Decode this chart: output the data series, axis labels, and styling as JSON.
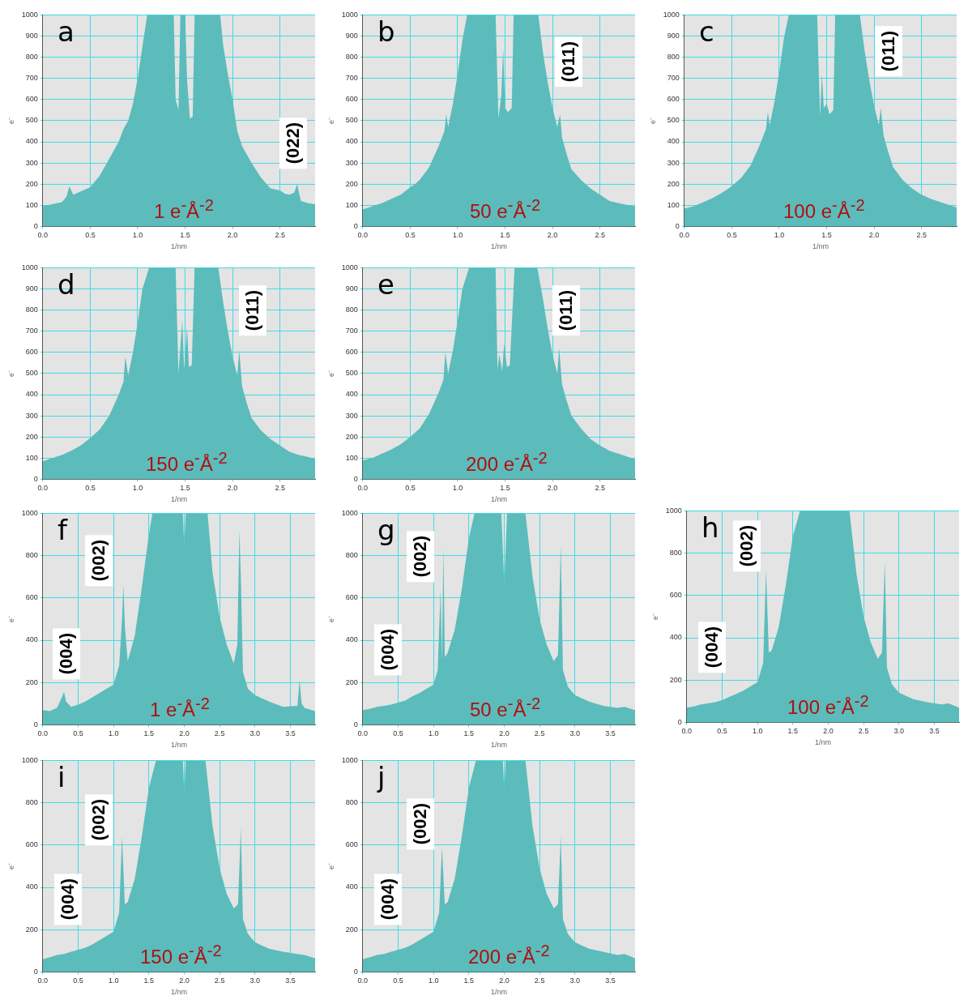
{
  "chart_data": [
    {
      "type": "area",
      "title": "a",
      "xlabel": "1/nm",
      "ylabel": "e⁻",
      "annotations": [
        "(022)",
        "1 e$^{-}$Å$^{-2}$"
      ],
      "xlim": [
        0,
        2.87
      ],
      "ylim": [
        0,
        1000
      ],
      "xticks": [
        {
          "value": 0,
          "label": "0.0"
        },
        {
          "value": 0.5,
          "label": "0.5"
        },
        {
          "value": 1,
          "label": "1.0"
        },
        {
          "value": 1.5,
          "label": "1.5"
        },
        {
          "value": 2,
          "label": "2.0"
        },
        {
          "value": 2.5,
          "label": "2.5"
        }
      ],
      "yticks": [
        0,
        100,
        200,
        300,
        400,
        500,
        600,
        700,
        800,
        900,
        1000
      ],
      "grid": true,
      "series": [
        {
          "color": "#5bbcbb",
          "x": [
            0,
            0.1,
            0.2,
            0.25,
            0.28,
            0.32,
            0.4,
            0.5,
            0.6,
            0.7,
            0.8,
            0.85,
            0.9,
            0.95,
            1.0,
            1.05,
            1.1,
            1.38,
            1.4,
            1.43,
            1.45,
            1.47,
            1.5,
            1.52,
            1.55,
            1.58,
            1.6,
            1.87,
            1.9,
            1.95,
            2.0,
            2.05,
            2.1,
            2.2,
            2.3,
            2.4,
            2.5,
            2.55,
            2.6,
            2.65,
            2.68,
            2.72,
            2.8,
            2.87
          ],
          "values": [
            95,
            105,
            115,
            140,
            190,
            150,
            165,
            185,
            240,
            320,
            400,
            460,
            500,
            580,
            700,
            850,
            1000,
            1000,
            600,
            550,
            1000,
            1000,
            1000,
            700,
            510,
            520,
            1000,
            1000,
            860,
            720,
            600,
            450,
            380,
            300,
            230,
            180,
            170,
            155,
            150,
            160,
            200,
            120,
            110,
            105
          ]
        }
      ]
    },
    {
      "type": "area",
      "title": "b",
      "xlabel": "1/nm",
      "ylabel": "e⁻",
      "annotations": [
        "(011)",
        "50 e$^{-}$Å$^{-2}$"
      ],
      "xlim": [
        0,
        2.87
      ],
      "ylim": [
        0,
        1000
      ],
      "xticks": [
        {
          "value": 0,
          "label": "0.0"
        },
        {
          "value": 0.5,
          "label": "0.5"
        },
        {
          "value": 1,
          "label": "1.0"
        },
        {
          "value": 1.5,
          "label": "1.5"
        },
        {
          "value": 2,
          "label": "2.0"
        },
        {
          "value": 2.5,
          "label": "2.5"
        }
      ],
      "yticks": [
        0,
        100,
        200,
        300,
        400,
        500,
        600,
        700,
        800,
        900,
        1000
      ],
      "grid": true,
      "series": [
        {
          "color": "#5bbcbb",
          "x": [
            0,
            0.1,
            0.2,
            0.3,
            0.4,
            0.5,
            0.55,
            0.6,
            0.7,
            0.8,
            0.86,
            0.88,
            0.9,
            0.95,
            1.0,
            1.05,
            1.1,
            1.4,
            1.43,
            1.46,
            1.48,
            1.5,
            1.53,
            1.57,
            1.59,
            1.85,
            1.9,
            1.95,
            2.0,
            2.05,
            2.08,
            2.1,
            2.15,
            2.2,
            2.3,
            2.4,
            2.5,
            2.6,
            2.7,
            2.8,
            2.87
          ],
          "values": [
            80,
            95,
            110,
            130,
            150,
            185,
            200,
            220,
            280,
            380,
            450,
            530,
            470,
            580,
            720,
            880,
            1000,
            1000,
            510,
            620,
            840,
            560,
            540,
            560,
            1000,
            1000,
            820,
            680,
            560,
            470,
            530,
            420,
            340,
            270,
            220,
            180,
            150,
            120,
            110,
            100,
            95
          ]
        }
      ]
    },
    {
      "type": "area",
      "title": "c",
      "xlabel": "1/nm",
      "ylabel": "e⁻",
      "annotations": [
        "(011)",
        "100 e$^{-}$Å$^{-2}$"
      ],
      "xlim": [
        0,
        2.87
      ],
      "ylim": [
        0,
        1000
      ],
      "xticks": [
        {
          "value": 0,
          "label": "0.0"
        },
        {
          "value": 0.5,
          "label": "0.5"
        },
        {
          "value": 1,
          "label": "1.0"
        },
        {
          "value": 1.5,
          "label": "1.5"
        },
        {
          "value": 2,
          "label": "2.0"
        },
        {
          "value": 2.5,
          "label": "2.5"
        }
      ],
      "yticks": [
        0,
        100,
        200,
        300,
        400,
        500,
        600,
        700,
        800,
        900,
        1000
      ],
      "grid": true,
      "series": [
        {
          "color": "#5bbcbb",
          "x": [
            0,
            0.1,
            0.2,
            0.3,
            0.4,
            0.5,
            0.55,
            0.6,
            0.7,
            0.8,
            0.86,
            0.88,
            0.9,
            0.95,
            1.0,
            1.05,
            1.1,
            1.4,
            1.43,
            1.45,
            1.47,
            1.5,
            1.53,
            1.57,
            1.59,
            1.85,
            1.9,
            1.95,
            2.0,
            2.05,
            2.07,
            2.1,
            2.15,
            2.2,
            2.3,
            2.4,
            2.5,
            2.6,
            2.7,
            2.8,
            2.87
          ],
          "values": [
            85,
            95,
            115,
            135,
            160,
            190,
            210,
            230,
            290,
            390,
            460,
            540,
            480,
            590,
            730,
            890,
            1000,
            1000,
            520,
            720,
            560,
            580,
            530,
            550,
            1000,
            1000,
            830,
            690,
            570,
            480,
            560,
            430,
            350,
            280,
            220,
            180,
            150,
            130,
            115,
            100,
            90
          ]
        }
      ]
    },
    {
      "type": "area",
      "title": "d",
      "xlabel": "1/nm",
      "ylabel": "e⁻",
      "annotations": [
        "(011)",
        "150 e$^{-}$Å$^{-2}$"
      ],
      "xlim": [
        0,
        2.87
      ],
      "ylim": [
        0,
        1000
      ],
      "xticks": [
        {
          "value": 0,
          "label": "0.0"
        },
        {
          "value": 0.5,
          "label": "0.5"
        },
        {
          "value": 1,
          "label": "1.0"
        },
        {
          "value": 1.5,
          "label": "1.5"
        },
        {
          "value": 2,
          "label": "2.0"
        },
        {
          "value": 2.5,
          "label": "2.5"
        }
      ],
      "yticks": [
        0,
        100,
        200,
        300,
        400,
        500,
        600,
        700,
        800,
        900,
        1000
      ],
      "grid": true,
      "series": [
        {
          "color": "#5bbcbb",
          "x": [
            0,
            0.1,
            0.2,
            0.3,
            0.4,
            0.5,
            0.55,
            0.6,
            0.7,
            0.8,
            0.85,
            0.87,
            0.9,
            0.95,
            1.0,
            1.05,
            1.12,
            1.4,
            1.43,
            1.47,
            1.49,
            1.52,
            1.54,
            1.57,
            1.6,
            1.85,
            1.9,
            1.95,
            2.0,
            2.05,
            2.07,
            2.1,
            2.15,
            2.2,
            2.3,
            2.4,
            2.5,
            2.6,
            2.7,
            2.8,
            2.87
          ],
          "values": [
            85,
            100,
            115,
            135,
            160,
            195,
            215,
            235,
            300,
            400,
            460,
            580,
            490,
            600,
            740,
            900,
            1000,
            1000,
            500,
            750,
            520,
            720,
            530,
            540,
            1000,
            1000,
            840,
            700,
            580,
            490,
            610,
            440,
            360,
            290,
            230,
            190,
            160,
            130,
            115,
            105,
            95
          ]
        }
      ]
    },
    {
      "type": "area",
      "title": "e",
      "xlabel": "1/nm",
      "ylabel": "e⁻",
      "annotations": [
        "(011)",
        "200 e$^{-}$Å$^{-2}$"
      ],
      "xlim": [
        0,
        2.87
      ],
      "ylim": [
        0,
        1000
      ],
      "xticks": [
        {
          "value": 0,
          "label": "0.0"
        },
        {
          "value": 0.5,
          "label": "0.5"
        },
        {
          "value": 1,
          "label": "1.0"
        },
        {
          "value": 1.5,
          "label": "1.5"
        },
        {
          "value": 2,
          "label": "2.0"
        },
        {
          "value": 2.5,
          "label": "2.5"
        }
      ],
      "yticks": [
        0,
        100,
        200,
        300,
        400,
        500,
        600,
        700,
        800,
        900,
        1000
      ],
      "grid": true,
      "series": [
        {
          "color": "#5bbcbb",
          "x": [
            0,
            0.1,
            0.2,
            0.3,
            0.4,
            0.5,
            0.55,
            0.6,
            0.7,
            0.8,
            0.85,
            0.87,
            0.9,
            0.95,
            1.0,
            1.05,
            1.12,
            1.4,
            1.42,
            1.44,
            1.47,
            1.49,
            1.52,
            1.55,
            1.6,
            1.84,
            1.9,
            1.95,
            2.0,
            2.05,
            2.07,
            2.1,
            2.15,
            2.2,
            2.3,
            2.4,
            2.5,
            2.6,
            2.7,
            2.8,
            2.87
          ],
          "values": [
            90,
            100,
            120,
            140,
            165,
            200,
            220,
            240,
            310,
            410,
            470,
            600,
            500,
            610,
            750,
            900,
            1000,
            1000,
            520,
            590,
            510,
            640,
            530,
            540,
            1000,
            1000,
            850,
            710,
            590,
            500,
            620,
            450,
            370,
            300,
            240,
            190,
            160,
            135,
            120,
            105,
            95
          ]
        }
      ]
    },
    {
      "type": "area",
      "title": "f",
      "xlabel": "1/nm",
      "ylabel": "e⁻",
      "annotations": [
        "(002)",
        "(004)",
        "1 e$^{-}$Å$^{-2}$"
      ],
      "xlim": [
        0,
        3.85
      ],
      "ylim": [
        0,
        1000
      ],
      "xticks": [
        {
          "value": 0,
          "label": "0.0"
        },
        {
          "value": 0.5,
          "label": "0.5"
        },
        {
          "value": 1,
          "label": "1.0"
        },
        {
          "value": 1.5,
          "label": "1.5"
        },
        {
          "value": 2,
          "label": "2.0"
        },
        {
          "value": 2.5,
          "label": "2.5"
        },
        {
          "value": 3,
          "label": "3.0"
        },
        {
          "value": 3.5,
          "label": "3.5"
        }
      ],
      "yticks": [
        0,
        200,
        400,
        600,
        800,
        1000
      ],
      "grid": true,
      "series": [
        {
          "color": "#5bbcbb",
          "x": [
            0,
            0.1,
            0.2,
            0.27,
            0.3,
            0.33,
            0.4,
            0.5,
            0.6,
            0.7,
            0.8,
            0.9,
            1.0,
            1.08,
            1.12,
            1.14,
            1.16,
            1.2,
            1.3,
            1.4,
            1.5,
            1.55,
            1.6,
            1.98,
            2.0,
            2.02,
            2.33,
            2.4,
            2.5,
            2.6,
            2.7,
            2.75,
            2.78,
            2.8,
            2.83,
            2.9,
            3.0,
            3.2,
            3.4,
            3.6,
            3.63,
            3.66,
            3.7,
            3.85
          ],
          "values": [
            70,
            65,
            80,
            130,
            155,
            110,
            85,
            95,
            110,
            130,
            150,
            170,
            190,
            280,
            500,
            660,
            470,
            300,
            420,
            650,
            900,
            1000,
            1000,
            1000,
            840,
            1000,
            1000,
            720,
            510,
            380,
            290,
            380,
            920,
            700,
            250,
            170,
            140,
            110,
            85,
            90,
            210,
            100,
            80,
            65
          ]
        }
      ]
    },
    {
      "type": "area",
      "title": "g",
      "xlabel": "1/nm",
      "ylabel": "e⁻",
      "annotations": [
        "(002)",
        "(004)",
        "50 e$^{-}$Å$^{-2}$"
      ],
      "xlim": [
        0,
        3.85
      ],
      "ylim": [
        0,
        1000
      ],
      "xticks": [
        {
          "value": 0,
          "label": "0.0"
        },
        {
          "value": 0.5,
          "label": "0.5"
        },
        {
          "value": 1,
          "label": "1.0"
        },
        {
          "value": 1.5,
          "label": "1.5"
        },
        {
          "value": 2,
          "label": "2.0"
        },
        {
          "value": 2.5,
          "label": "2.5"
        },
        {
          "value": 3,
          "label": "3.0"
        },
        {
          "value": 3.5,
          "label": "3.5"
        }
      ],
      "yticks": [
        0,
        200,
        400,
        600,
        800,
        1000
      ],
      "grid": true,
      "series": [
        {
          "color": "#5bbcbb",
          "x": [
            0,
            0.1,
            0.2,
            0.3,
            0.4,
            0.5,
            0.6,
            0.7,
            0.8,
            0.9,
            1.0,
            1.06,
            1.1,
            1.12,
            1.14,
            1.16,
            1.2,
            1.3,
            1.4,
            1.5,
            1.58,
            1.96,
            2.0,
            2.04,
            2.3,
            2.4,
            2.5,
            2.6,
            2.7,
            2.76,
            2.8,
            2.83,
            2.9,
            3.0,
            3.2,
            3.4,
            3.6,
            3.7,
            3.85
          ],
          "values": [
            70,
            75,
            85,
            90,
            95,
            105,
            115,
            135,
            150,
            170,
            190,
            260,
            640,
            300,
            840,
            320,
            340,
            450,
            640,
            880,
            1000,
            1000,
            660,
            1000,
            1000,
            700,
            500,
            380,
            300,
            330,
            850,
            260,
            180,
            140,
            110,
            90,
            80,
            85,
            70
          ]
        }
      ]
    },
    {
      "type": "area",
      "title": "h",
      "xlabel": "1/nm",
      "ylabel": "e⁻",
      "annotations": [
        "(002)",
        "(004)",
        "100 e$^{-}$Å$^{-2}$"
      ],
      "xlim": [
        0,
        3.85
      ],
      "ylim": [
        0,
        1000
      ],
      "xticks": [
        {
          "value": 0,
          "label": "0.0"
        },
        {
          "value": 0.5,
          "label": "0.5"
        },
        {
          "value": 1,
          "label": "1.0"
        },
        {
          "value": 1.5,
          "label": "1.5"
        },
        {
          "value": 2,
          "label": "2.0"
        },
        {
          "value": 2.5,
          "label": "2.5"
        },
        {
          "value": 3,
          "label": "3.0"
        },
        {
          "value": 3.5,
          "label": "3.5"
        }
      ],
      "yticks": [
        0,
        200,
        400,
        600,
        800,
        1000
      ],
      "grid": true,
      "series": [
        {
          "color": "#5bbcbb",
          "x": [
            0,
            0.1,
            0.2,
            0.3,
            0.4,
            0.5,
            0.6,
            0.7,
            0.8,
            0.9,
            1.0,
            1.08,
            1.12,
            1.16,
            1.2,
            1.3,
            1.4,
            1.5,
            1.6,
            1.98,
            2.0,
            2.02,
            2.3,
            2.4,
            2.5,
            2.6,
            2.7,
            2.76,
            2.8,
            2.83,
            2.9,
            3.0,
            3.2,
            3.4,
            3.6,
            3.7,
            3.85
          ],
          "values": [
            70,
            75,
            85,
            90,
            95,
            105,
            120,
            135,
            150,
            170,
            190,
            280,
            720,
            330,
            340,
            450,
            650,
            880,
            1000,
            1000,
            1000,
            1000,
            1000,
            700,
            500,
            380,
            300,
            330,
            760,
            260,
            180,
            140,
            110,
            95,
            85,
            90,
            70
          ]
        }
      ]
    },
    {
      "type": "area",
      "title": "i",
      "xlabel": "1/nm",
      "ylabel": "e⁻",
      "annotations": [
        "(002)",
        "(004)",
        "150 e$^{-}$Å$^{-2}$"
      ],
      "xlim": [
        0,
        3.85
      ],
      "ylim": [
        0,
        1000
      ],
      "xticks": [
        {
          "value": 0,
          "label": "0.0"
        },
        {
          "value": 0.5,
          "label": "0.5"
        },
        {
          "value": 1,
          "label": "1.0"
        },
        {
          "value": 1.5,
          "label": "1.5"
        },
        {
          "value": 2,
          "label": "2.0"
        },
        {
          "value": 2.5,
          "label": "2.5"
        },
        {
          "value": 3,
          "label": "3.0"
        },
        {
          "value": 3.5,
          "label": "3.5"
        }
      ],
      "yticks": [
        0,
        200,
        400,
        600,
        800,
        1000
      ],
      "grid": true,
      "series": [
        {
          "color": "#5bbcbb",
          "x": [
            0,
            0.1,
            0.2,
            0.3,
            0.4,
            0.5,
            0.6,
            0.7,
            0.8,
            0.9,
            1.0,
            1.08,
            1.12,
            1.16,
            1.2,
            1.3,
            1.4,
            1.5,
            1.6,
            1.98,
            2.0,
            2.02,
            2.3,
            2.4,
            2.5,
            2.6,
            2.7,
            2.76,
            2.8,
            2.83,
            2.9,
            3.0,
            3.2,
            3.4,
            3.6,
            3.7,
            3.85
          ],
          "values": [
            60,
            70,
            80,
            85,
            95,
            105,
            115,
            130,
            150,
            170,
            190,
            280,
            640,
            320,
            330,
            440,
            640,
            870,
            1000,
            1000,
            840,
            1000,
            1000,
            690,
            490,
            370,
            300,
            320,
            680,
            250,
            180,
            140,
            110,
            95,
            85,
            80,
            65
          ]
        }
      ]
    },
    {
      "type": "area",
      "title": "j",
      "xlabel": "1/nm",
      "ylabel": "e⁻",
      "annotations": [
        "(002)",
        "(004)",
        "200 e$^{-}$Å$^{-2}$"
      ],
      "xlim": [
        0,
        3.85
      ],
      "ylim": [
        0,
        1000
      ],
      "xticks": [
        {
          "value": 0,
          "label": "0.0"
        },
        {
          "value": 0.5,
          "label": "0.5"
        },
        {
          "value": 1,
          "label": "1.0"
        },
        {
          "value": 1.5,
          "label": "1.5"
        },
        {
          "value": 2,
          "label": "2.0"
        },
        {
          "value": 2.5,
          "label": "2.5"
        },
        {
          "value": 3,
          "label": "3.0"
        },
        {
          "value": 3.5,
          "label": "3.5"
        }
      ],
      "yticks": [
        0,
        200,
        400,
        600,
        800,
        1000
      ],
      "grid": true,
      "series": [
        {
          "color": "#5bbcbb",
          "x": [
            0,
            0.1,
            0.2,
            0.3,
            0.4,
            0.5,
            0.6,
            0.7,
            0.8,
            0.9,
            1.0,
            1.08,
            1.12,
            1.16,
            1.2,
            1.3,
            1.4,
            1.5,
            1.6,
            1.98,
            2.0,
            2.02,
            2.3,
            2.4,
            2.5,
            2.6,
            2.7,
            2.76,
            2.8,
            2.83,
            2.9,
            3.0,
            3.2,
            3.4,
            3.6,
            3.7,
            3.85
          ],
          "values": [
            60,
            70,
            80,
            85,
            95,
            105,
            115,
            130,
            150,
            170,
            190,
            280,
            590,
            320,
            330,
            440,
            640,
            870,
            1000,
            1000,
            860,
            1000,
            1000,
            690,
            490,
            370,
            300,
            320,
            640,
            250,
            180,
            140,
            110,
            95,
            80,
            85,
            65
          ]
        }
      ]
    }
  ]
}
